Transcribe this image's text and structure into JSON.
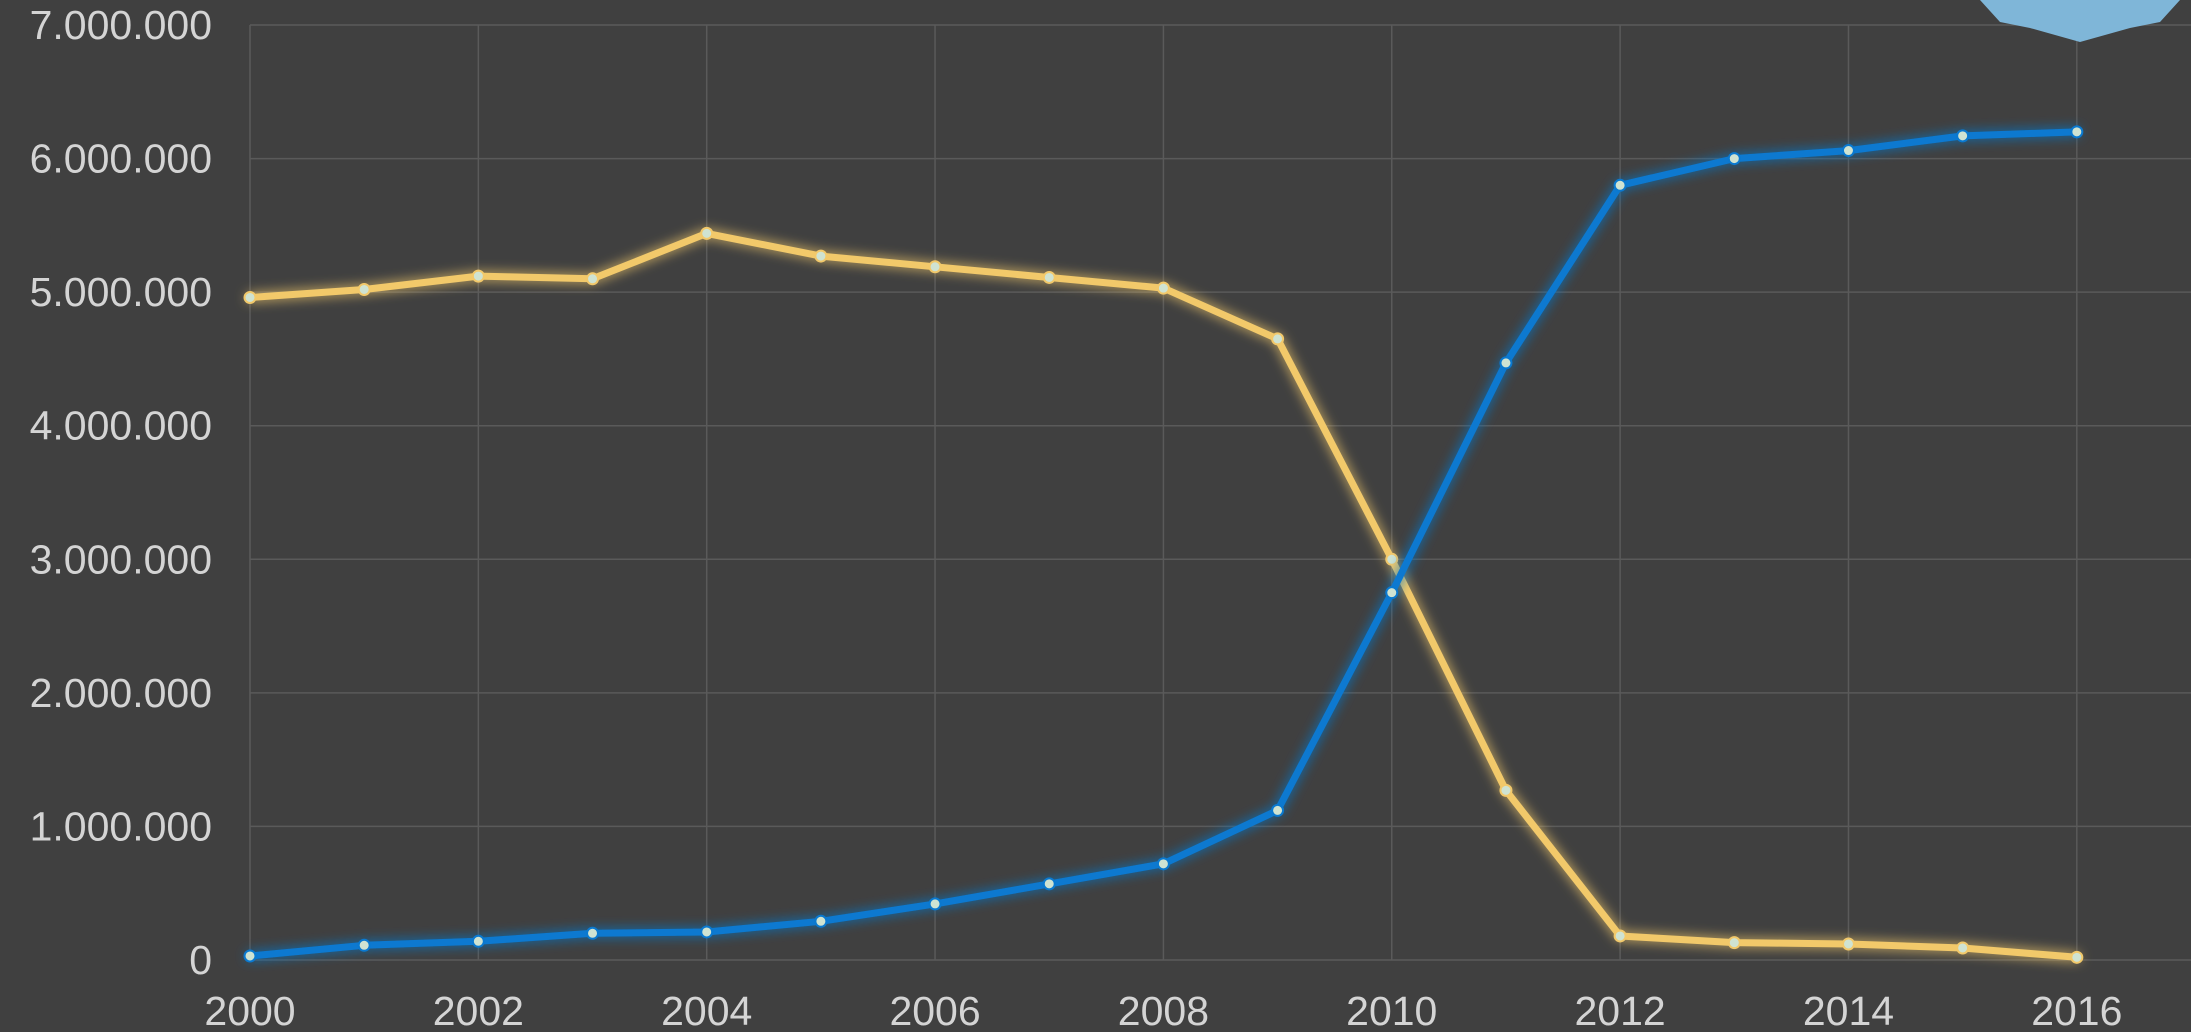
{
  "chart_data": {
    "type": "line",
    "title": "",
    "xlabel": "",
    "ylabel": "",
    "x": [
      2000,
      2001,
      2002,
      2003,
      2004,
      2005,
      2006,
      2007,
      2008,
      2009,
      2010,
      2011,
      2012,
      2013,
      2014,
      2015,
      2016
    ],
    "xlim": [
      2000,
      2017
    ],
    "ylim": [
      0,
      7000000
    ],
    "x_ticks": [
      "2000",
      "2002",
      "2004",
      "2006",
      "2008",
      "2010",
      "2012",
      "2014",
      "2016"
    ],
    "y_ticks": [
      "0",
      "1.000.000",
      "2.000.000",
      "3.000.000",
      "4.000.000",
      "5.000.000",
      "6.000.000",
      "7.000.000"
    ],
    "grid": true,
    "legend": "none",
    "series": [
      {
        "color": "#f2c96b",
        "values": [
          4960000,
          5020000,
          5120000,
          5100000,
          5440000,
          5270000,
          5190000,
          5110000,
          5030000,
          4650000,
          3000000,
          1270000,
          180000,
          130000,
          120000,
          90000,
          20000
        ]
      },
      {
        "color": "#0a79d0",
        "values": [
          30000,
          110000,
          140000,
          200000,
          210000,
          290000,
          420000,
          570000,
          720000,
          1120000,
          2750000,
          4470000,
          5800000,
          6000000,
          6060000,
          6170000,
          6200000
        ]
      }
    ],
    "marker_color": "#cfe3d2",
    "badge_color": "#7fb6d8"
  }
}
